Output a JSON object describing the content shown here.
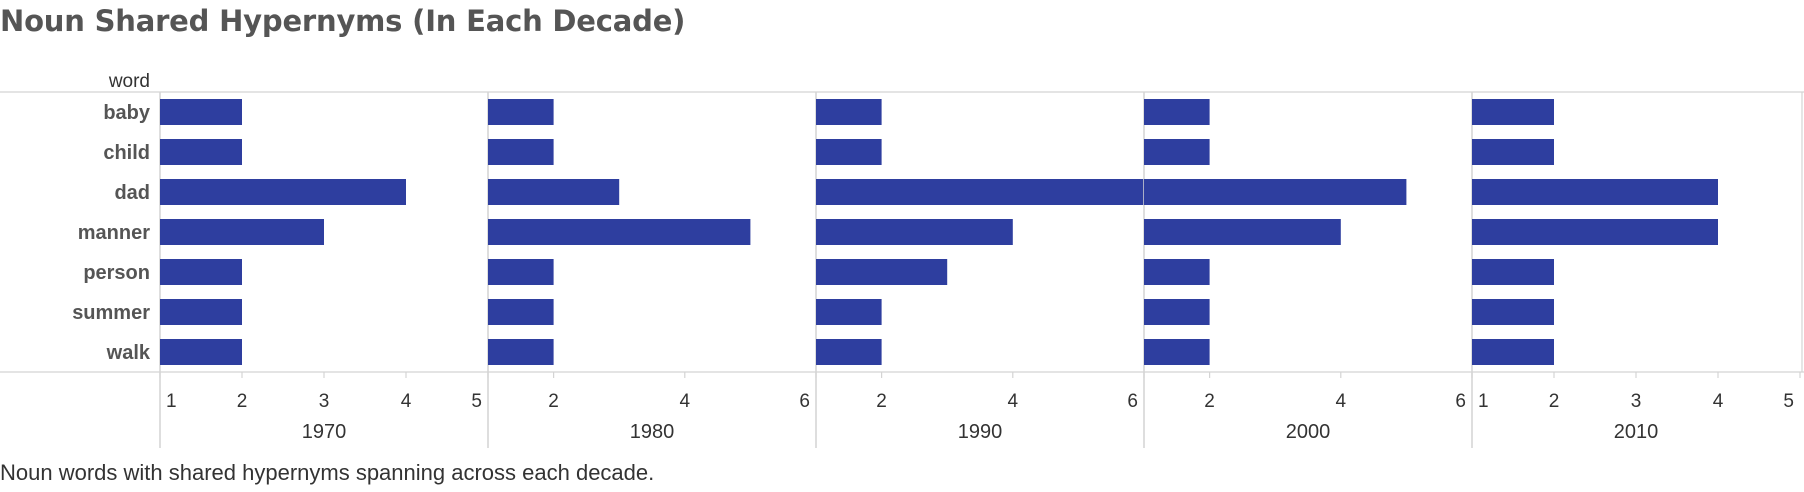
{
  "title": "Noun Shared Hypernyms (In Each Decade)",
  "caption": "Noun words with shared hypernyms spanning across each decade.",
  "colors": {
    "bar": "#2E3E9F",
    "grid": "#D4D4D4",
    "text": "#555555"
  },
  "chart_data": {
    "type": "bar",
    "orientation": "horizontal",
    "row_header": "word",
    "categories": [
      "baby",
      "child",
      "dad",
      "manner",
      "person",
      "summer",
      "walk"
    ],
    "panels": [
      {
        "name": "1970",
        "xlim": [
          1,
          5
        ],
        "ticks": [
          1,
          2,
          3,
          4,
          5
        ],
        "values": [
          2,
          2,
          4,
          3,
          2,
          2,
          2
        ]
      },
      {
        "name": "1980",
        "xlim": [
          1,
          6
        ],
        "ticks": [
          2,
          4,
          6
        ],
        "values": [
          2,
          2,
          3,
          5,
          2,
          2,
          2
        ]
      },
      {
        "name": "1990",
        "xlim": [
          1,
          6
        ],
        "ticks": [
          2,
          4,
          6
        ],
        "values": [
          2,
          2,
          6,
          4,
          3,
          2,
          2
        ]
      },
      {
        "name": "2000",
        "xlim": [
          1,
          6
        ],
        "ticks": [
          2,
          4,
          6
        ],
        "values": [
          2,
          2,
          5,
          4,
          2,
          2,
          2
        ]
      },
      {
        "name": "2010",
        "xlim": [
          1,
          5
        ],
        "ticks": [
          1,
          2,
          3,
          4,
          5
        ],
        "values": [
          2,
          2,
          4,
          4,
          2,
          2,
          2
        ]
      }
    ]
  }
}
